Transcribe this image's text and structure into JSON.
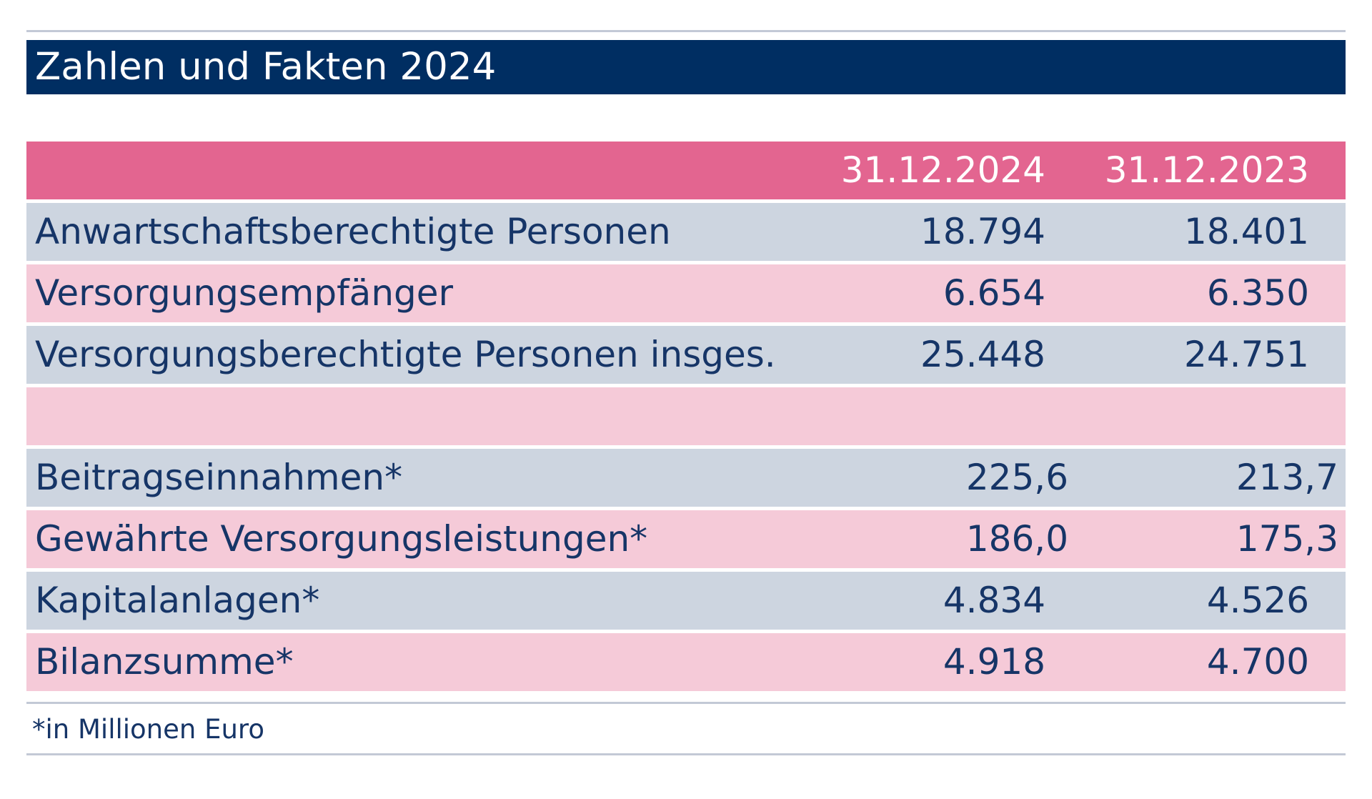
{
  "title": "Zahlen und Fakten 2024",
  "table": {
    "header": {
      "col1": "31.12.2024",
      "col2": "31.12.2023"
    },
    "rows": [
      {
        "label": "Anwartschaftsberechtigte Personen",
        "v2024": "18.794",
        "v2023": "18.401"
      },
      {
        "label": "Versorgungsempfänger",
        "v2024": "6.654",
        "v2023": "6.350"
      },
      {
        "label": "Versorgungsberechtigte Personen insges.",
        "v2024": "25.448",
        "v2023": "24.751"
      },
      {
        "label": "",
        "v2024": "",
        "v2023": ""
      },
      {
        "label": "Beitragseinnahmen*",
        "v2024": "225,6",
        "v2023": "213,7"
      },
      {
        "label": "Gewährte Versorgungsleistungen*",
        "v2024": "186,0",
        "v2023": "175,3"
      },
      {
        "label": "Kapitalanlagen*",
        "v2024": "4.834",
        "v2023": "4.526"
      },
      {
        "label": "Bilanzsumme*",
        "v2024": "4.918",
        "v2023": "4.700"
      }
    ]
  },
  "footnote": "*in Millionen Euro",
  "colors": {
    "title_bg": "#002e62",
    "header_bg": "#e36590",
    "row_blue": "#cdd5e0",
    "row_pink": "#f5cad8",
    "text": "#163567"
  }
}
